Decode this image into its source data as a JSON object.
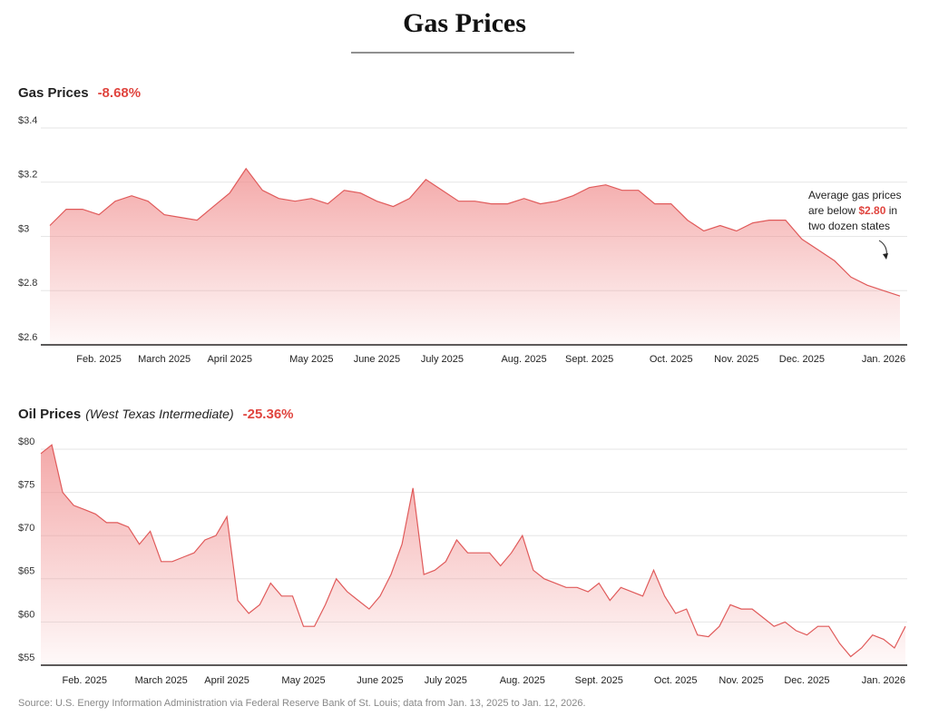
{
  "title": "Gas Prices",
  "source": "Source: U.S. Energy Information Administration via Federal Reserve Bank of St. Louis; data from Jan. 13, 2025 to Jan. 12, 2026.",
  "chart_data": [
    {
      "type": "line",
      "title": "Gas Prices",
      "change": "-8.68%",
      "color": "#e05a5a",
      "categories": [
        null,
        null,
        null,
        "Feb. 2025",
        null,
        null,
        null,
        "March 2025",
        null,
        null,
        null,
        "April 2025",
        null,
        null,
        null,
        null,
        "May 2025",
        null,
        null,
        null,
        "June 2025",
        null,
        null,
        null,
        "July 2025",
        null,
        null,
        null,
        null,
        "Aug. 2025",
        null,
        null,
        null,
        "Sept. 2025",
        null,
        null,
        null,
        null,
        "Oct. 2025",
        null,
        null,
        null,
        "Nov. 2025",
        null,
        null,
        null,
        "Dec. 2025",
        null,
        null,
        null,
        null,
        "Jan. 2026",
        null
      ],
      "values": [
        3.04,
        3.1,
        3.1,
        3.08,
        3.13,
        3.15,
        3.13,
        3.08,
        3.07,
        3.06,
        3.11,
        3.16,
        3.25,
        3.17,
        3.14,
        3.13,
        3.14,
        3.12,
        3.17,
        3.16,
        3.13,
        3.11,
        3.14,
        3.21,
        3.17,
        3.13,
        3.13,
        3.12,
        3.12,
        3.14,
        3.12,
        3.13,
        3.15,
        3.18,
        3.19,
        3.17,
        3.17,
        3.12,
        3.12,
        3.06,
        3.02,
        3.04,
        3.02,
        3.05,
        3.06,
        3.06,
        2.99,
        2.95,
        2.91,
        2.85,
        2.82,
        2.8,
        2.78
      ],
      "ylim": [
        2.6,
        3.4
      ],
      "yticks": [
        {
          "value": 3.4,
          "label": "$3.4"
        },
        {
          "value": 3.2,
          "label": "$3.2"
        },
        {
          "value": 3.0,
          "label": "$3"
        },
        {
          "value": 2.8,
          "label": "$2.8"
        },
        {
          "value": 2.6,
          "label": "$2.6"
        }
      ],
      "grid": true,
      "annotation": {
        "line1": "Average gas prices",
        "line2_before": "are below",
        "highlight": "$2.80",
        "line2_after": "in",
        "line3": "two dozen states"
      }
    },
    {
      "type": "line",
      "title": "Oil Prices",
      "subtitle": "(West Texas Intermediate)",
      "change": "-25.36%",
      "color": "#e05a5a",
      "categories": [
        null,
        null,
        null,
        null,
        "Feb. 2025",
        null,
        null,
        null,
        null,
        null,
        null,
        "March 2025",
        null,
        null,
        null,
        null,
        null,
        "April 2025",
        null,
        null,
        null,
        null,
        null,
        null,
        "May 2025",
        null,
        null,
        null,
        null,
        null,
        null,
        "June 2025",
        null,
        null,
        null,
        null,
        null,
        "July 2025",
        null,
        null,
        null,
        null,
        null,
        null,
        "Aug. 2025",
        null,
        null,
        null,
        null,
        null,
        null,
        "Sept. 2025",
        null,
        null,
        null,
        null,
        null,
        null,
        "Oct. 2025",
        null,
        null,
        null,
        null,
        null,
        "Nov. 2025",
        null,
        null,
        null,
        null,
        null,
        "Dec. 2025",
        null,
        null,
        null,
        null,
        null,
        null,
        "Jan. 2026",
        null,
        null
      ],
      "values": [
        79.5,
        80.5,
        75,
        73.5,
        73,
        72.5,
        71.5,
        71.5,
        71,
        69,
        70.5,
        67,
        67,
        67.5,
        68,
        69.5,
        70,
        72.2,
        62.5,
        61,
        62,
        64.5,
        63,
        63,
        59.5,
        59.5,
        62,
        65,
        63.5,
        62.5,
        61.5,
        63,
        65.5,
        69,
        75.5,
        65.5,
        66,
        67,
        69.5,
        68,
        68,
        68,
        66.5,
        68,
        70,
        66,
        65,
        64.5,
        64,
        64,
        63.5,
        64.5,
        62.5,
        64,
        63.5,
        63,
        66,
        63,
        61,
        61.5,
        58.5,
        58.3,
        59.5,
        62,
        61.5,
        61.5,
        60.5,
        59.5,
        60,
        59,
        58.5,
        59.5,
        59.5,
        57.5,
        56,
        57,
        58.5,
        58,
        57,
        59.5
      ],
      "ylim": [
        55,
        80
      ],
      "yticks": [
        {
          "value": 80,
          "label": "$80"
        },
        {
          "value": 75,
          "label": "$75"
        },
        {
          "value": 70,
          "label": "$70"
        },
        {
          "value": 65,
          "label": "$65"
        },
        {
          "value": 60,
          "label": "$60"
        },
        {
          "value": 55,
          "label": "$55"
        }
      ],
      "grid": true
    }
  ]
}
